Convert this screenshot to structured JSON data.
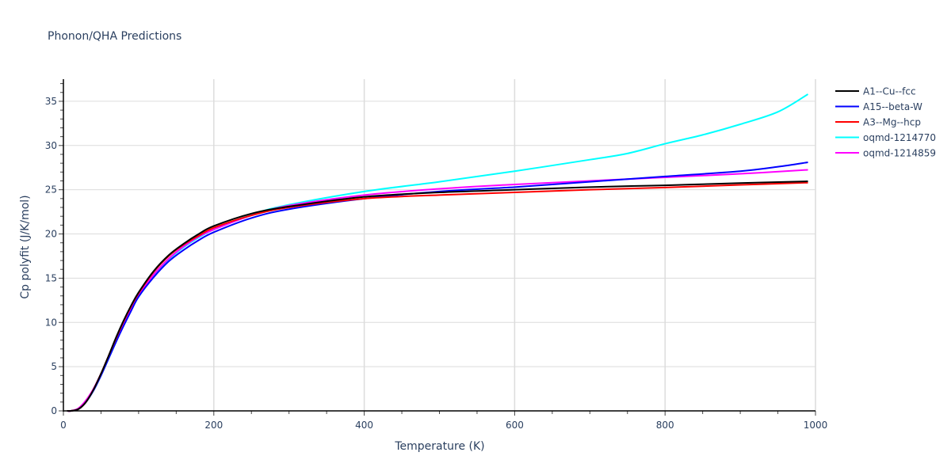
{
  "chart_data": {
    "type": "line",
    "title": "Phonon/QHA Predictions",
    "xlabel": "Temperature (K)",
    "ylabel": "Cp polyfit (J/K/mol)",
    "xlim": [
      0,
      1000
    ],
    "ylim": [
      0,
      37.5
    ],
    "xticks": [
      0,
      200,
      400,
      600,
      800,
      1000
    ],
    "yticks": [
      0,
      5,
      10,
      15,
      20,
      25,
      30,
      35
    ],
    "grid": true,
    "legend_position": "right",
    "series": [
      {
        "name": "A1--Cu--fcc",
        "color": "#000000",
        "x": [
          5,
          10,
          20,
          30,
          40,
          50,
          60,
          70,
          80,
          90,
          100,
          120,
          140,
          160,
          180,
          200,
          250,
          300,
          400,
          500,
          600,
          700,
          800,
          900,
          990
        ],
        "y": [
          0,
          0,
          0.2,
          1.0,
          2.4,
          4.2,
          6.2,
          8.3,
          10.2,
          11.9,
          13.4,
          15.8,
          17.6,
          18.9,
          20.0,
          20.9,
          22.3,
          23.1,
          24.2,
          24.7,
          25.0,
          25.3,
          25.5,
          25.75,
          25.95
        ]
      },
      {
        "name": "A15--beta-W",
        "color": "#0000ff",
        "x": [
          5,
          10,
          20,
          30,
          40,
          50,
          60,
          70,
          80,
          90,
          100,
          120,
          140,
          160,
          180,
          200,
          250,
          300,
          400,
          500,
          600,
          700,
          800,
          900,
          950,
          990
        ],
        "y": [
          0,
          0,
          0.2,
          1.0,
          2.3,
          4.0,
          5.9,
          7.8,
          9.6,
          11.3,
          12.9,
          15.1,
          16.9,
          18.2,
          19.3,
          20.2,
          21.8,
          22.8,
          24.0,
          24.8,
          25.3,
          25.9,
          26.5,
          27.1,
          27.6,
          28.1
        ]
      },
      {
        "name": "A3--Mg--hcp",
        "color": "#ff0000",
        "x": [
          5,
          10,
          20,
          30,
          40,
          50,
          60,
          70,
          80,
          90,
          100,
          120,
          140,
          160,
          180,
          200,
          250,
          300,
          400,
          500,
          600,
          700,
          800,
          900,
          990
        ],
        "y": [
          0,
          0,
          0.2,
          1.0,
          2.4,
          4.2,
          6.2,
          8.2,
          10.1,
          11.8,
          13.3,
          15.7,
          17.5,
          18.8,
          19.8,
          20.7,
          22.1,
          23.0,
          24.0,
          24.4,
          24.7,
          25.0,
          25.25,
          25.55,
          25.8
        ]
      },
      {
        "name": "oqmd-1214770",
        "color": "#00ffff",
        "x": [
          5,
          10,
          20,
          30,
          40,
          50,
          60,
          70,
          80,
          90,
          100,
          120,
          140,
          160,
          180,
          200,
          250,
          300,
          400,
          500,
          600,
          700,
          750,
          800,
          850,
          900,
          950,
          990
        ],
        "y": [
          0,
          0,
          0.2,
          1.0,
          2.3,
          4.0,
          5.9,
          7.8,
          9.7,
          11.4,
          12.9,
          15.2,
          17.1,
          18.5,
          19.6,
          20.5,
          22.2,
          23.3,
          24.8,
          25.9,
          27.1,
          28.4,
          29.1,
          30.2,
          31.2,
          32.4,
          33.8,
          35.8
        ]
      },
      {
        "name": "oqmd-1214859",
        "color": "#ff00ff",
        "x": [
          5,
          10,
          20,
          30,
          40,
          50,
          60,
          70,
          80,
          90,
          100,
          120,
          140,
          160,
          180,
          200,
          250,
          300,
          400,
          500,
          600,
          700,
          800,
          900,
          990
        ],
        "y": [
          0,
          0,
          0.3,
          1.2,
          2.5,
          4.2,
          6.0,
          7.9,
          9.8,
          11.5,
          13.1,
          15.4,
          17.2,
          18.6,
          19.7,
          20.5,
          22.1,
          23.2,
          24.4,
          25.1,
          25.6,
          26.0,
          26.4,
          26.8,
          27.25
        ]
      }
    ]
  }
}
